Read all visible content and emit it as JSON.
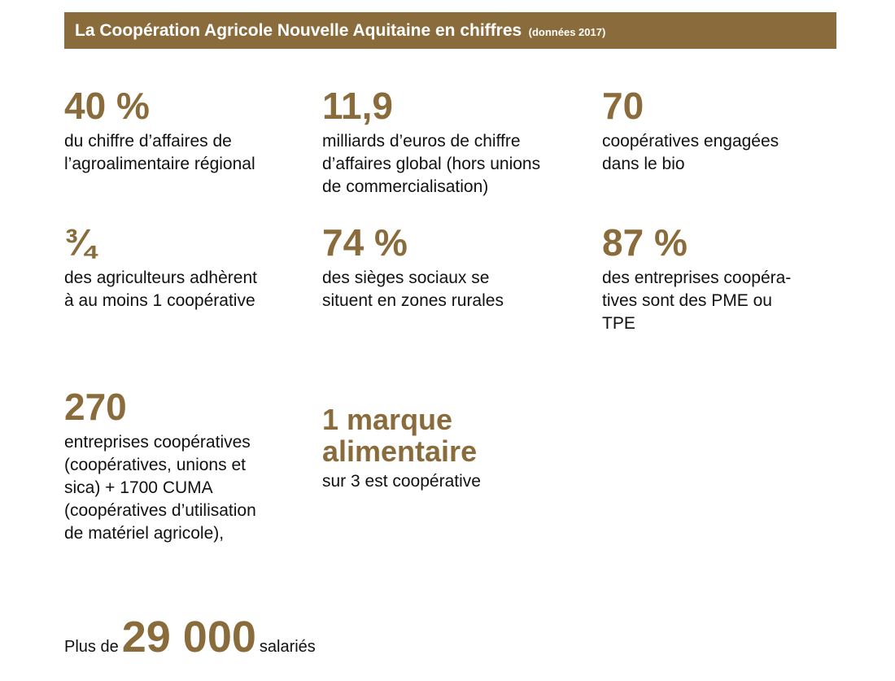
{
  "header": {
    "title": "La Coopération Agricole Nouvelle Aquitaine en chiffres",
    "subtitle": "(données 2017)"
  },
  "stats": [
    {
      "value": "40 %",
      "lines": [
        "du chiffre d’affaires de",
        "l’agroalimentaire régional"
      ]
    },
    {
      "value": "11,9",
      "lines": [
        "milliards d’euros de chiffre",
        "d’affaires global (hors unions",
        "de commercialisation)"
      ]
    },
    {
      "value": "70",
      "lines": [
        "coopératives engagées",
        "dans le bio"
      ]
    },
    {
      "value": "¾",
      "lines": [
        "des agriculteurs adhèrent",
        "à au moins 1 coopérative"
      ]
    },
    {
      "value": "74 %",
      "lines": [
        "des sièges sociaux se",
        "situent en zones rurales"
      ]
    },
    {
      "value": "87 %",
      "lines": [
        "des entreprises coopéra-",
        "tives sont des PME ou",
        "TPE"
      ]
    },
    {
      "value": "270",
      "lines": [
        "entreprises coopératives",
        "(coopératives, unions et",
        "sica) + 1700 CUMA",
        "(coopératives d’utilisation",
        "de matériel agricole),"
      ]
    },
    {
      "value": "1 marque alimentaire",
      "lines": [
        "sur 3 est coopérative"
      ]
    }
  ],
  "footer": {
    "prefix": "Plus de",
    "value": "29 000",
    "suffix": "salariés"
  }
}
